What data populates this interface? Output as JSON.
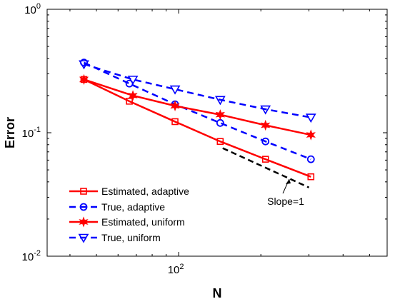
{
  "chart_data": {
    "type": "line",
    "title": "",
    "xlabel": "N",
    "ylabel": "Error",
    "xscale": "log",
    "yscale": "log",
    "xlim": [
      33,
      580
    ],
    "ylim": [
      0.01,
      1
    ],
    "grid": false,
    "legend_position": "bottom-left",
    "x_tick_labels": [
      {
        "value": 100,
        "base": "10",
        "exp": "2"
      }
    ],
    "y_tick_labels": [
      {
        "value": 0.01,
        "base": "10",
        "exp": "-2"
      },
      {
        "value": 0.1,
        "base": "10",
        "exp": "-1"
      },
      {
        "value": 1,
        "base": "10",
        "exp": "0"
      }
    ],
    "series": [
      {
        "name": "Estimated, adaptive",
        "color": "#ff0000",
        "line_style": "solid",
        "marker": "square",
        "x": [
          45,
          66,
          97,
          142,
          208,
          305
        ],
        "y": [
          0.27,
          0.18,
          0.123,
          0.085,
          0.061,
          0.044
        ]
      },
      {
        "name": "True, adaptive",
        "color": "#0000ff",
        "line_style": "dashed",
        "marker": "circle",
        "x": [
          45,
          66,
          97,
          142,
          208,
          305
        ],
        "y": [
          0.37,
          0.25,
          0.17,
          0.12,
          0.085,
          0.061
        ]
      },
      {
        "name": "Estimated, uniform",
        "color": "#ff0000",
        "line_style": "solid",
        "marker": "hexagram",
        "x": [
          45,
          68,
          97,
          142,
          208,
          305
        ],
        "y": [
          0.27,
          0.2,
          0.165,
          0.14,
          0.115,
          0.096
        ]
      },
      {
        "name": "True, uniform",
        "color": "#0000ff",
        "line_style": "dashed",
        "marker": "triangle-down",
        "x": [
          45,
          68,
          97,
          142,
          208,
          305
        ],
        "y": [
          0.36,
          0.27,
          0.225,
          0.185,
          0.155,
          0.133
        ]
      }
    ],
    "reference_line": {
      "label": "Slope=1",
      "color": "#000000",
      "line_style": "dashed",
      "x": [
        145,
        300
      ],
      "y": [
        0.075,
        0.036
      ]
    }
  }
}
